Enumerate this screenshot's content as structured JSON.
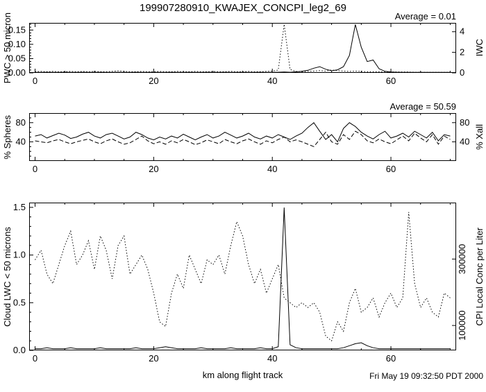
{
  "title": "199907280910_KWAJEX_CONCPI_leg2_69",
  "xlabel": "km along flight track",
  "timestamp": "Fri May 19 09:32:50 PDT 2000",
  "chart_data": [
    {
      "type": "line",
      "annotation": "Average = 0.01",
      "ylabel_left": "PWC > 50 micron",
      "ylabel_right": "IWC",
      "x_range": [
        -1,
        71
      ],
      "y_range": [
        0,
        0.175
      ],
      "y_range_right": [
        0,
        4.86
      ],
      "x_ticks": [
        {
          "v": 0,
          "label": "0"
        },
        {
          "v": 20,
          "label": "20"
        },
        {
          "v": 40,
          "label": "40"
        },
        {
          "v": 60,
          "label": "60"
        }
      ],
      "x_minor": [
        5,
        10,
        15,
        25,
        30,
        35,
        45,
        50,
        55,
        65,
        70
      ],
      "y_ticks_left": [
        {
          "v": 0,
          "label": "0.00"
        },
        {
          "v": 0.05,
          "label": "0.05"
        },
        {
          "v": 0.1,
          "label": "0.10"
        },
        {
          "v": 0.15,
          "label": "0.15"
        }
      ],
      "y_minor": [
        0.01,
        0.02,
        0.03,
        0.04,
        0.06,
        0.07,
        0.08,
        0.09,
        0.11,
        0.12,
        0.13,
        0.14,
        0.16,
        0.17
      ],
      "y_ticks_right": [
        {
          "v": 0,
          "label": "0"
        },
        {
          "v": 2,
          "label": "2"
        },
        {
          "v": 4,
          "label": "4"
        }
      ],
      "x": [
        0,
        1,
        2,
        3,
        4,
        5,
        6,
        7,
        8,
        9,
        10,
        11,
        12,
        13,
        14,
        15,
        16,
        17,
        18,
        19,
        20,
        21,
        22,
        23,
        24,
        25,
        26,
        27,
        28,
        29,
        30,
        31,
        32,
        33,
        34,
        35,
        36,
        37,
        38,
        39,
        40,
        41,
        42,
        43,
        44,
        45,
        46,
        47,
        48,
        49,
        50,
        51,
        52,
        53,
        54,
        55,
        56,
        57,
        58,
        59,
        60,
        61,
        62,
        63,
        64,
        65,
        66,
        67,
        68,
        69,
        70
      ],
      "series": [
        {
          "name": "PWC > 50 micron",
          "style": "dotted",
          "axis": "left",
          "values": [
            0.004,
            0.005,
            0.004,
            0.005,
            0.004,
            0.004,
            0.005,
            0.004,
            0.005,
            0.004,
            0.005,
            0.004,
            0.004,
            0.005,
            0.007,
            0.005,
            0.004,
            0.004,
            0.005,
            0.004,
            0.004,
            0.005,
            0.004,
            0.004,
            0.005,
            0.004,
            0.004,
            0.005,
            0.004,
            0.004,
            0.005,
            0.004,
            0.004,
            0.005,
            0.004,
            0.004,
            0.005,
            0.004,
            0.004,
            0.005,
            0.006,
            0.01,
            0.17,
            0.012,
            0.005,
            0.004,
            0.005,
            0.006,
            0.008,
            0.006,
            0.01,
            0.008,
            0.006,
            0.005,
            0.006,
            0.005,
            0.004,
            0.004,
            0.004,
            0.003,
            0.003,
            0.003,
            0.003,
            0.003,
            0.002,
            0.002,
            0.002,
            0.002,
            0.002,
            0.002,
            0.002
          ]
        },
        {
          "name": "IWC",
          "style": "solid",
          "axis": "right",
          "values": [
            0.05,
            0.05,
            0.06,
            0.05,
            0.05,
            0.06,
            0.05,
            0.05,
            0.06,
            0.05,
            0.05,
            0.06,
            0.05,
            0.05,
            0.06,
            0.05,
            0.05,
            0.06,
            0.05,
            0.05,
            0.06,
            0.05,
            0.05,
            0.06,
            0.05,
            0.05,
            0.06,
            0.05,
            0.05,
            0.06,
            0.05,
            0.05,
            0.06,
            0.05,
            0.05,
            0.06,
            0.05,
            0.05,
            0.06,
            0.05,
            0.05,
            0.06,
            0.08,
            0.06,
            0.1,
            0.15,
            0.25,
            0.45,
            0.6,
            0.35,
            0.2,
            0.3,
            0.6,
            1.7,
            4.7,
            2.5,
            1.1,
            1.25,
            0.4,
            0.15,
            0.08,
            0.06,
            0.05,
            0.05,
            0.05,
            0.05,
            0.05,
            0.05,
            0.05,
            0.05,
            0.05
          ]
        }
      ]
    },
    {
      "type": "line",
      "annotation": "Average = 50.59",
      "ylabel_left": "% Spheres",
      "ylabel_right": "% Xall",
      "x_range": [
        -1,
        71
      ],
      "y_range": [
        0,
        100
      ],
      "y_range_right": [
        0,
        100
      ],
      "x_ticks": [
        {
          "v": 0,
          "label": "0"
        },
        {
          "v": 20,
          "label": "20"
        },
        {
          "v": 40,
          "label": "40"
        },
        {
          "v": 60,
          "label": "60"
        }
      ],
      "x_minor": [
        5,
        10,
        15,
        25,
        30,
        35,
        45,
        50,
        55,
        65,
        70
      ],
      "y_ticks_left": [
        {
          "v": 40,
          "label": "40"
        },
        {
          "v": 80,
          "label": "80"
        }
      ],
      "y_minor": [
        10,
        20,
        30,
        50,
        60,
        70,
        90
      ],
      "y_ticks_right": [
        {
          "v": 40,
          "label": "40"
        },
        {
          "v": 80,
          "label": "80"
        }
      ],
      "x": [
        0,
        1,
        2,
        3,
        4,
        5,
        6,
        7,
        8,
        9,
        10,
        11,
        12,
        13,
        14,
        15,
        16,
        17,
        18,
        19,
        20,
        21,
        22,
        23,
        24,
        25,
        26,
        27,
        28,
        29,
        30,
        31,
        32,
        33,
        34,
        35,
        36,
        37,
        38,
        39,
        40,
        41,
        42,
        43,
        44,
        45,
        46,
        47,
        48,
        49,
        50,
        51,
        52,
        53,
        54,
        55,
        56,
        57,
        58,
        59,
        60,
        61,
        62,
        63,
        64,
        65,
        66,
        67,
        68,
        69,
        70
      ],
      "series": [
        {
          "name": "% Spheres",
          "style": "solid",
          "axis": "left",
          "values": [
            52,
            55,
            48,
            53,
            58,
            54,
            47,
            50,
            56,
            60,
            52,
            48,
            55,
            58,
            52,
            46,
            50,
            60,
            55,
            48,
            44,
            50,
            46,
            52,
            48,
            56,
            50,
            44,
            50,
            55,
            48,
            52,
            60,
            54,
            48,
            52,
            58,
            50,
            46,
            52,
            48,
            55,
            50,
            45,
            52,
            58,
            70,
            80,
            62,
            45,
            55,
            40,
            68,
            80,
            72,
            60,
            52,
            46,
            55,
            62,
            48,
            52,
            58,
            50,
            62,
            55,
            48,
            60,
            42,
            55,
            52
          ]
        },
        {
          "name": "% Xall",
          "style": "dashed",
          "axis": "left",
          "values": [
            42,
            40,
            38,
            42,
            45,
            40,
            36,
            40,
            43,
            46,
            40,
            36,
            42,
            46,
            40,
            35,
            38,
            45,
            52,
            42,
            36,
            40,
            35,
            42,
            38,
            45,
            40,
            34,
            38,
            44,
            40,
            36,
            45,
            40,
            36,
            42,
            46,
            40,
            35,
            42,
            38,
            45,
            50,
            40,
            44,
            40,
            35,
            30,
            45,
            60,
            40,
            35,
            55,
            45,
            62,
            55,
            42,
            38,
            46,
            40,
            36,
            44,
            52,
            42,
            58,
            48,
            40,
            55,
            35,
            52,
            45
          ]
        }
      ]
    },
    {
      "type": "line",
      "ylabel_left": "Cloud LWC < 50 microns",
      "ylabel_right": "CPI Local Conc per Liter",
      "x_range": [
        -1,
        71
      ],
      "y_range": [
        0,
        1.55
      ],
      "y_range_right": [
        25000,
        470000
      ],
      "right_labels_rotated": true,
      "x_ticks": [
        {
          "v": 0,
          "label": "0"
        },
        {
          "v": 20,
          "label": "20"
        },
        {
          "v": 40,
          "label": "40"
        },
        {
          "v": 60,
          "label": "60"
        }
      ],
      "x_minor": [
        5,
        10,
        15,
        25,
        30,
        35,
        45,
        50,
        55,
        65,
        70
      ],
      "y_ticks_left": [
        {
          "v": 0,
          "label": "0.0"
        },
        {
          "v": 0.5,
          "label": "0.5"
        },
        {
          "v": 1.0,
          "label": "1.0"
        },
        {
          "v": 1.5,
          "label": "1.5"
        }
      ],
      "y_minor": [
        0.1,
        0.2,
        0.3,
        0.4,
        0.6,
        0.7,
        0.8,
        0.9,
        1.1,
        1.2,
        1.3,
        1.4
      ],
      "y_ticks_right": [
        {
          "v": 100000,
          "label": "100000"
        },
        {
          "v": 300000,
          "label": "300000"
        }
      ],
      "x": [
        0,
        1,
        2,
        3,
        4,
        5,
        6,
        7,
        8,
        9,
        10,
        11,
        12,
        13,
        14,
        15,
        16,
        17,
        18,
        19,
        20,
        21,
        22,
        23,
        24,
        25,
        26,
        27,
        28,
        29,
        30,
        31,
        32,
        33,
        34,
        35,
        36,
        37,
        38,
        39,
        40,
        41,
        42,
        43,
        44,
        45,
        46,
        47,
        48,
        49,
        50,
        51,
        52,
        53,
        54,
        55,
        56,
        57,
        58,
        59,
        60,
        61,
        62,
        63,
        64,
        65,
        66,
        67,
        68,
        69,
        70
      ],
      "series": [
        {
          "name": "Cloud LWC < 50 microns",
          "style": "dotted",
          "axis": "left",
          "values": [
            0.95,
            1.05,
            0.8,
            0.7,
            0.9,
            1.1,
            1.25,
            0.9,
            1.0,
            1.15,
            0.85,
            1.2,
            1.05,
            0.75,
            1.1,
            1.2,
            0.8,
            0.9,
            1.0,
            0.85,
            0.6,
            0.3,
            0.25,
            0.6,
            0.8,
            0.65,
            1.0,
            0.85,
            0.7,
            0.95,
            0.9,
            1.0,
            0.8,
            1.1,
            1.35,
            1.2,
            0.9,
            0.7,
            0.85,
            0.6,
            0.75,
            0.9,
            0.55,
            0.5,
            0.45,
            0.5,
            0.45,
            0.5,
            0.4,
            0.15,
            0.1,
            0.3,
            0.2,
            0.5,
            0.65,
            0.4,
            0.45,
            0.55,
            0.35,
            0.5,
            0.6,
            0.45,
            0.55,
            1.45,
            0.7,
            0.45,
            0.55,
            0.4,
            0.35,
            0.6,
            0.55
          ]
        },
        {
          "name": "CPI Local Conc per Liter",
          "style": "solid",
          "axis": "right",
          "values": [
            30000,
            30000,
            33000,
            30000,
            30000,
            30000,
            33000,
            30000,
            30000,
            30000,
            30000,
            33000,
            30000,
            30000,
            30000,
            30000,
            30000,
            33000,
            30000,
            30000,
            30000,
            33000,
            36000,
            33000,
            30000,
            30000,
            30000,
            30000,
            33000,
            30000,
            30000,
            30000,
            30000,
            33000,
            30000,
            30000,
            30000,
            30000,
            33000,
            30000,
            30000,
            36000,
            455000,
            42000,
            33000,
            30000,
            30000,
            30000,
            30000,
            30000,
            30000,
            30000,
            33000,
            39000,
            45000,
            48000,
            39000,
            33000,
            30000,
            30000,
            30000,
            30000,
            30000,
            30000,
            30000,
            30000,
            30000,
            30000,
            30000,
            30000,
            30000
          ]
        }
      ]
    }
  ]
}
